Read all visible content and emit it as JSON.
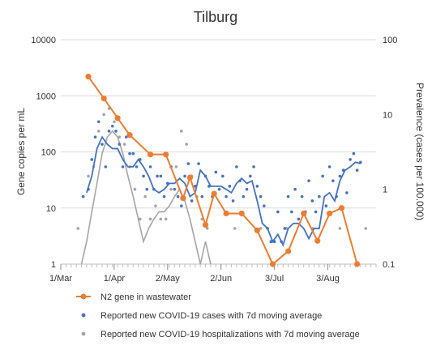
{
  "chart_data": {
    "type": "line",
    "title": "Tilburg",
    "ylabel": "Gene copies per mL",
    "y2label": "Prevalence (cases per 100.000)",
    "yscale": "log",
    "ylim": [
      1,
      10000
    ],
    "y2scale": "log",
    "y2lim": [
      0.1,
      100
    ],
    "xlim": [
      "2020-03-01",
      "2020-08-31"
    ],
    "yticks": [
      "1",
      "10",
      "100",
      "1000",
      "10000"
    ],
    "y2ticks": [
      "0.1",
      "1",
      "10",
      "100"
    ],
    "xticks": [
      {
        "label": "1/Mar",
        "date": "2020-03-01"
      },
      {
        "label": "1/Apr",
        "date": "2020-04-01"
      },
      {
        "label": "2/May",
        "date": "2020-05-02"
      },
      {
        "label": "2/Jun",
        "date": "2020-06-02"
      },
      {
        "label": "3/Jul",
        "date": "2020-07-03"
      },
      {
        "label": "3/Aug",
        "date": "2020-08-03"
      }
    ],
    "grid": true,
    "legend_position": "bottom",
    "series": [
      {
        "name": "N2 gene in wastewater",
        "axis": "left",
        "color": "#ED7D31",
        "style": "line+markers",
        "x": [
          "2020-03-17",
          "2020-03-26",
          "2020-04-03",
          "2020-04-10",
          "2020-04-22",
          "2020-05-01",
          "2020-05-11",
          "2020-05-15",
          "2020-05-24",
          "2020-05-29",
          "2020-06-05",
          "2020-06-14",
          "2020-06-23",
          "2020-07-02",
          "2020-07-11",
          "2020-07-20",
          "2020-07-28",
          "2020-08-04",
          "2020-08-11",
          "2020-08-20"
        ],
        "y": [
          2200,
          900,
          400,
          200,
          90,
          90,
          15,
          35,
          5,
          18,
          8,
          8,
          4,
          1,
          1.7,
          8,
          2.6,
          8,
          10,
          1
        ]
      },
      {
        "name": "Reported new COVID-19 cases with 7d moving average",
        "axis": "right",
        "color": "#4472C4",
        "style": "dots+line",
        "line_x": [
          "2020-03-16",
          "2020-03-19",
          "2020-03-22",
          "2020-03-25",
          "2020-03-28",
          "2020-03-31",
          "2020-04-03",
          "2020-04-06",
          "2020-04-09",
          "2020-04-12",
          "2020-04-15",
          "2020-04-18",
          "2020-04-21",
          "2020-04-24",
          "2020-04-27",
          "2020-04-30",
          "2020-05-03",
          "2020-05-06",
          "2020-05-09",
          "2020-05-12",
          "2020-05-15",
          "2020-05-18",
          "2020-05-21",
          "2020-05-24",
          "2020-05-27",
          "2020-05-30",
          "2020-06-02",
          "2020-06-05",
          "2020-06-08",
          "2020-06-11",
          "2020-06-14",
          "2020-06-17",
          "2020-06-20",
          "2020-06-23",
          "2020-06-26",
          "2020-06-29",
          "2020-07-02",
          "2020-07-05",
          "2020-07-08",
          "2020-07-11",
          "2020-07-14",
          "2020-07-17",
          "2020-07-20",
          "2020-07-23",
          "2020-07-26",
          "2020-07-29",
          "2020-08-01",
          "2020-08-04",
          "2020-08-07",
          "2020-08-10",
          "2020-08-13",
          "2020-08-16",
          "2020-08-19",
          "2020-08-22"
        ],
        "line_y": [
          0.9,
          1.5,
          3.5,
          5,
          4,
          3.5,
          3.5,
          2.5,
          2,
          2,
          2.5,
          2,
          1.5,
          1,
          0.9,
          1,
          1.2,
          1.2,
          1.4,
          1.2,
          0.8,
          0.9,
          1.8,
          1.5,
          1.1,
          1.1,
          1.1,
          1.0,
          0.9,
          1.2,
          1.4,
          1.2,
          1.3,
          0.7,
          0.35,
          0.3,
          0.2,
          0.25,
          0.18,
          0.3,
          0.35,
          0.35,
          0.3,
          0.22,
          0.3,
          0.3,
          0.8,
          0.9,
          0.7,
          1.3,
          1.8,
          2.0,
          2.3,
          2.2
        ],
        "points_x": [
          "2020-03-14",
          "2020-03-17",
          "2020-03-19",
          "2020-03-21",
          "2020-03-23",
          "2020-03-25",
          "2020-03-27",
          "2020-03-29",
          "2020-03-31",
          "2020-04-02",
          "2020-04-04",
          "2020-04-06",
          "2020-04-08",
          "2020-04-10",
          "2020-04-12",
          "2020-04-14",
          "2020-04-16",
          "2020-04-18",
          "2020-04-20",
          "2020-04-22",
          "2020-04-24",
          "2020-04-26",
          "2020-04-28",
          "2020-04-30",
          "2020-05-02",
          "2020-05-04",
          "2020-05-06",
          "2020-05-08",
          "2020-05-10",
          "2020-05-12",
          "2020-05-14",
          "2020-05-16",
          "2020-05-18",
          "2020-05-20",
          "2020-05-22",
          "2020-05-24",
          "2020-05-26",
          "2020-05-28",
          "2020-05-30",
          "2020-06-01",
          "2020-06-03",
          "2020-06-05",
          "2020-06-07",
          "2020-06-09",
          "2020-06-11",
          "2020-06-13",
          "2020-06-15",
          "2020-06-17",
          "2020-06-19",
          "2020-06-21",
          "2020-06-23",
          "2020-06-25",
          "2020-06-27",
          "2020-06-29",
          "2020-07-01",
          "2020-07-03",
          "2020-07-05",
          "2020-07-07",
          "2020-07-09",
          "2020-07-11",
          "2020-07-13",
          "2020-07-15",
          "2020-07-17",
          "2020-07-19",
          "2020-07-21",
          "2020-07-23",
          "2020-07-25",
          "2020-07-27",
          "2020-07-29",
          "2020-07-31",
          "2020-08-02",
          "2020-08-04",
          "2020-08-06",
          "2020-08-08",
          "2020-08-10",
          "2020-08-12",
          "2020-08-14",
          "2020-08-16",
          "2020-08-18",
          "2020-08-20",
          "2020-08-22"
        ],
        "points_y": [
          0.8,
          1.0,
          2.5,
          5,
          8,
          4,
          2,
          6,
          7,
          6,
          4,
          2,
          5,
          3,
          3,
          2,
          2.5,
          1.5,
          1,
          2,
          1,
          1.5,
          1.5,
          0.8,
          1.2,
          2,
          1,
          0.8,
          0.6,
          1.5,
          2.2,
          0.7,
          1.1,
          2.2,
          0.8,
          1.5,
          1.1,
          0.8,
          1.7,
          1.0,
          1.5,
          0.8,
          1.1,
          0.7,
          2,
          1.3,
          0.8,
          1.0,
          1.5,
          2.0,
          1.1,
          0.8,
          0.6,
          0.3,
          0.2,
          0.2,
          0.5,
          0.2,
          0.3,
          0.8,
          0.5,
          1.0,
          0.4,
          0.8,
          0.5,
          1.3,
          0.7,
          0.5,
          0.8,
          1.5,
          0.6,
          2.0,
          1.3,
          0.8,
          1.5,
          1.8,
          0.9,
          2.5,
          3.0,
          1.8,
          2.3
        ]
      },
      {
        "name": "Reported new COVID-19 hospitalizations with 7d moving average",
        "axis": "right",
        "color": "#A5A5A5",
        "style": "dots+line",
        "line_x": [
          "2020-03-13",
          "2020-03-16",
          "2020-03-19",
          "2020-03-22",
          "2020-03-25",
          "2020-03-28",
          "2020-03-31",
          "2020-04-03",
          "2020-04-06",
          "2020-04-09",
          "2020-04-12",
          "2020-04-15",
          "2020-04-18",
          "2020-04-21",
          "2020-04-24",
          "2020-04-27",
          "2020-04-30",
          "2020-05-03",
          "2020-05-06",
          "2020-05-09",
          "2020-05-12",
          "2020-05-15",
          "2020-05-18",
          "2020-05-21",
          "2020-05-24",
          "2020-05-27"
        ],
        "line_y": [
          0.1,
          0.2,
          0.5,
          1.2,
          3,
          5,
          6,
          5,
          3,
          1.5,
          0.8,
          0.4,
          0.2,
          0.3,
          0.4,
          0.5,
          0.5,
          0.6,
          0.8,
          1.0,
          0.7,
          0.4,
          0.2,
          0.1,
          0.2,
          0.1
        ],
        "points_x": [
          "2020-03-11",
          "2020-03-14",
          "2020-03-17",
          "2020-03-20",
          "2020-03-23",
          "2020-03-26",
          "2020-03-29",
          "2020-04-01",
          "2020-04-04",
          "2020-04-07",
          "2020-04-10",
          "2020-04-13",
          "2020-04-16",
          "2020-04-19",
          "2020-04-22",
          "2020-04-25",
          "2020-04-28",
          "2020-05-01",
          "2020-05-04",
          "2020-05-07",
          "2020-05-10",
          "2020-05-13",
          "2020-05-16",
          "2020-05-19",
          "2020-05-22",
          "2020-05-25",
          "2020-06-10",
          "2020-06-25",
          "2020-07-10",
          "2020-07-25",
          "2020-08-10",
          "2020-08-25"
        ],
        "points_y": [
          0.3,
          0.8,
          1.5,
          2,
          6,
          10,
          12,
          8,
          5,
          4,
          2,
          1,
          0.4,
          0.8,
          0.4,
          0.6,
          0.4,
          0.4,
          1,
          2,
          6,
          4,
          1.5,
          0.8,
          0.4,
          0.3,
          0.3,
          0.3,
          0.3,
          0.3,
          0.3,
          0.3
        ]
      }
    ]
  }
}
